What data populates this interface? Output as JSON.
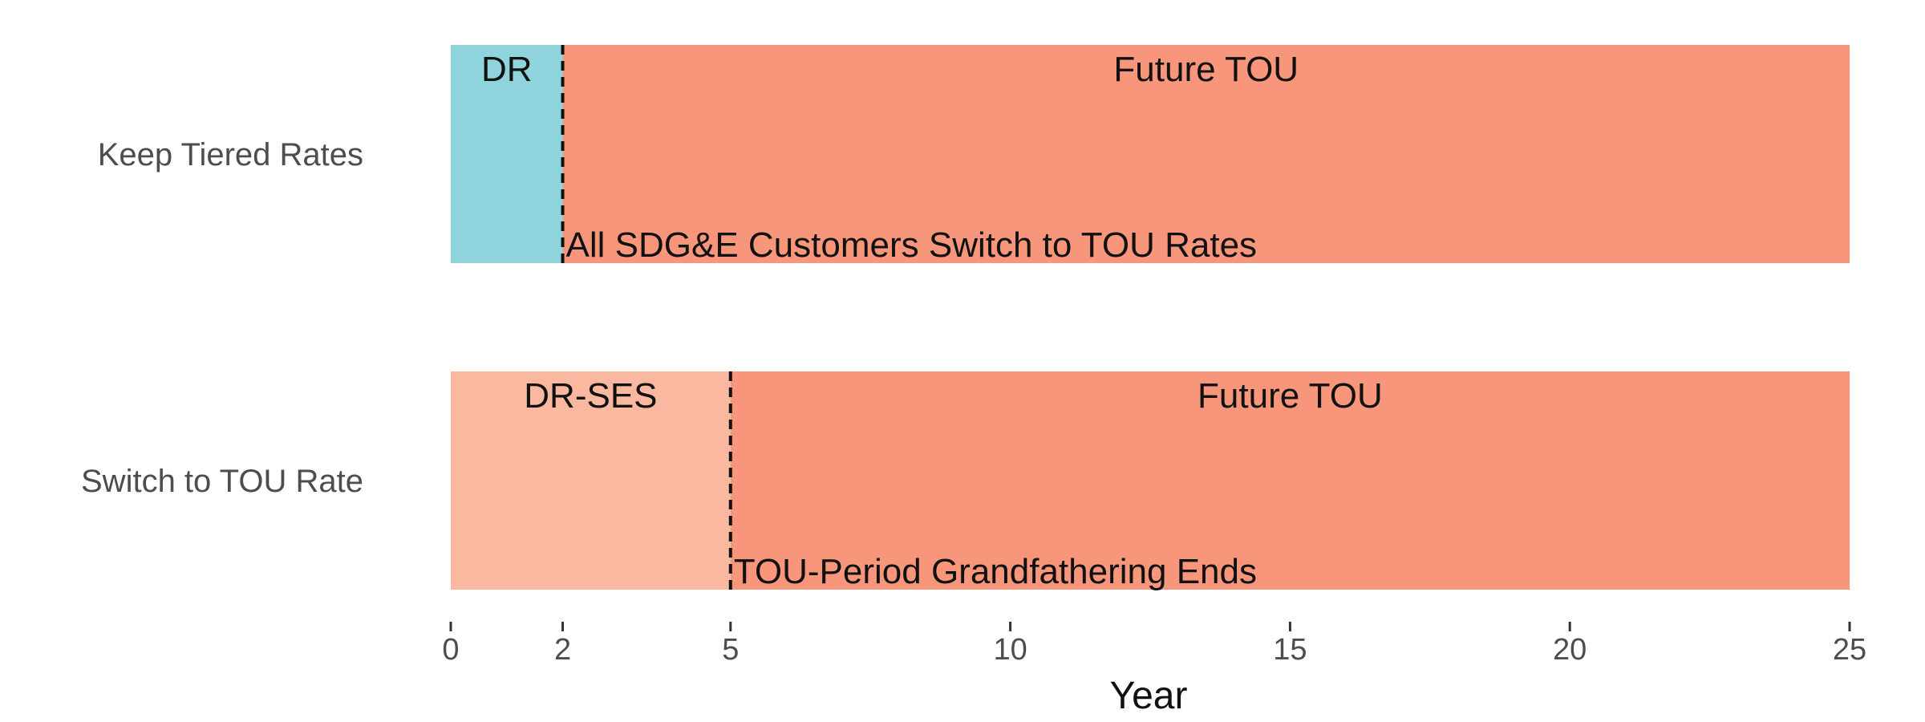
{
  "chart_data": {
    "type": "bar",
    "orientation": "horizontal-timeline",
    "xlabel": "Year",
    "xlim": [
      0,
      25
    ],
    "x_ticks": [
      0,
      2,
      5,
      10,
      15,
      20,
      25
    ],
    "grid": false,
    "legend": "none",
    "rows": [
      {
        "label": "Keep Tiered Rates",
        "segments": [
          {
            "label": "DR",
            "start": 0,
            "end": 2,
            "color": "#8fd4dd"
          },
          {
            "label": "Future TOU",
            "start": 2,
            "end": 25,
            "color": "#f7967a"
          }
        ],
        "event": {
          "x": 2,
          "label": "All SDG&E Customers Switch to TOU Rates"
        }
      },
      {
        "label": "Switch to TOU Rate",
        "segments": [
          {
            "label": "DR-SES",
            "start": 0,
            "end": 5,
            "color": "#f9b89f"
          },
          {
            "label": "Future TOU",
            "start": 5,
            "end": 25,
            "color": "#f7967a"
          }
        ],
        "event": {
          "x": 5,
          "label": "TOU-Period Grandfathering Ends"
        }
      }
    ]
  }
}
